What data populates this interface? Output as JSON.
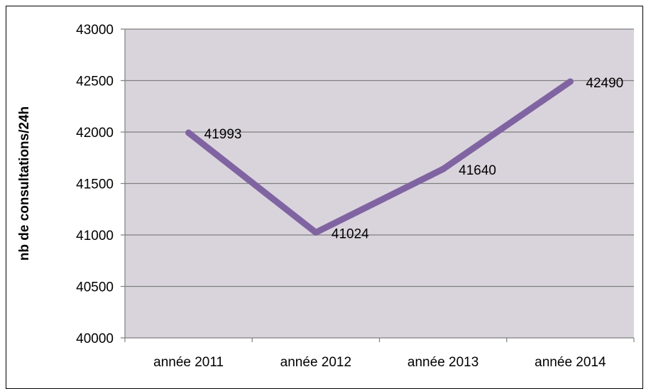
{
  "chart_data": {
    "type": "line",
    "categories": [
      "année 2011",
      "année 2012",
      "année 2013",
      "année 2014"
    ],
    "series": [
      {
        "values": [
          41993,
          41024,
          41640,
          42490
        ],
        "color": "#8064a2"
      }
    ],
    "data_labels": [
      "41993",
      "41024",
      "41640",
      "42490"
    ],
    "ylabel": "nb de consultations/24h",
    "ylim": [
      40000,
      43000
    ],
    "yticks": [
      40000,
      40500,
      41000,
      41500,
      42000,
      42500,
      43000
    ],
    "plot_background": "#d9d4dc",
    "grid": true
  }
}
